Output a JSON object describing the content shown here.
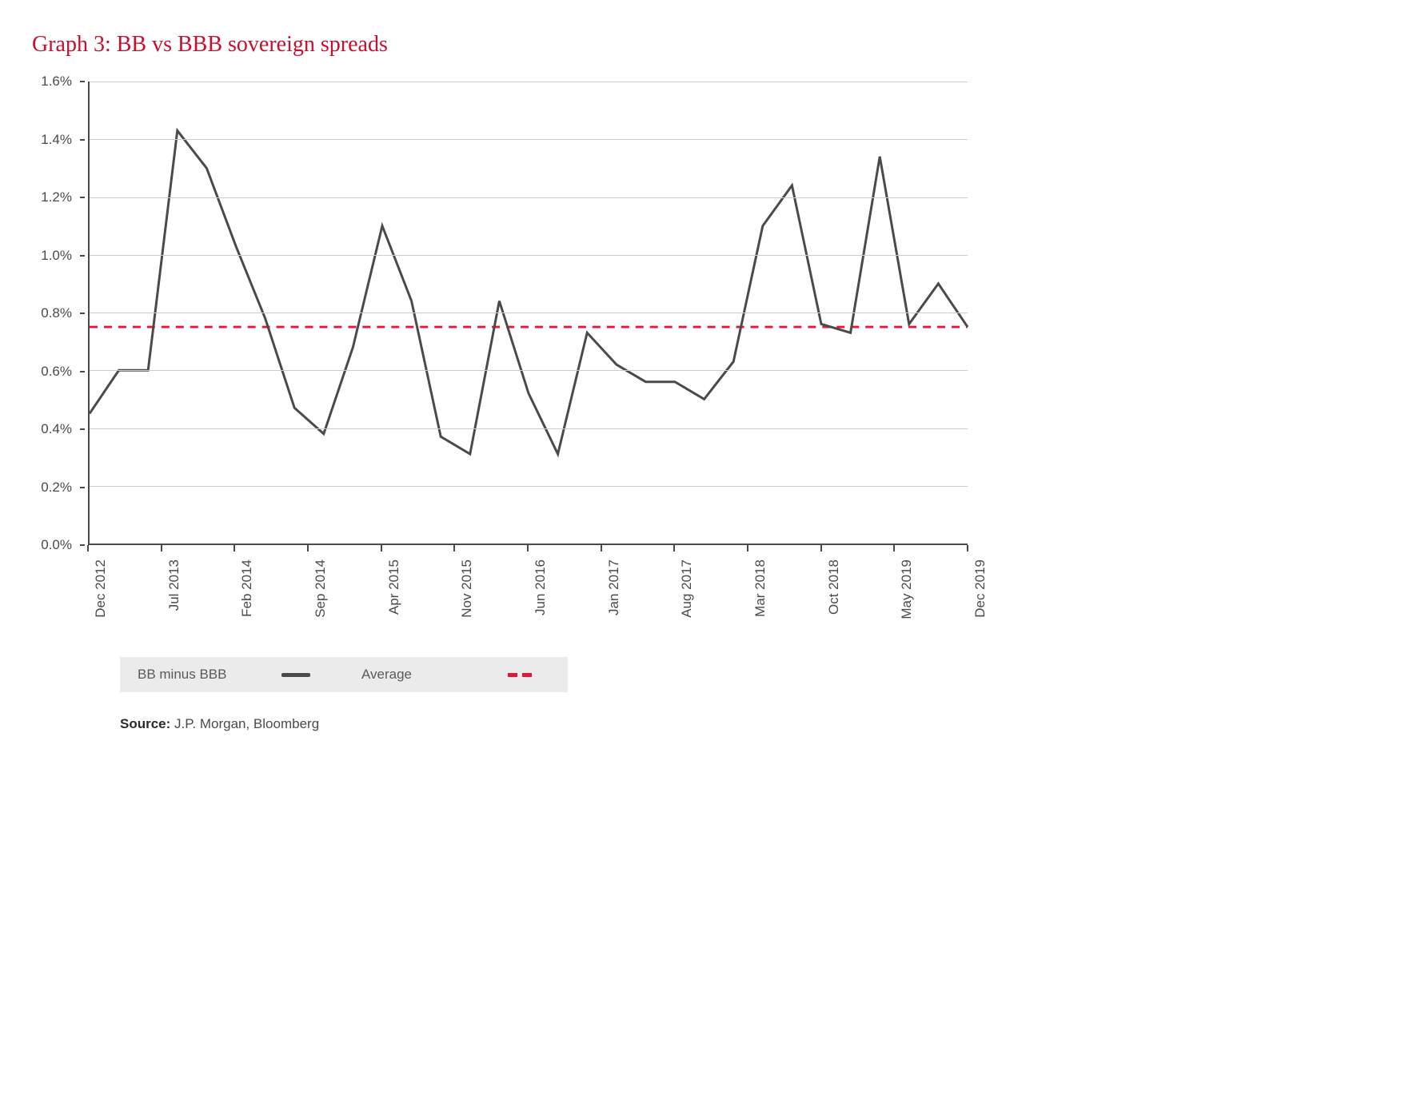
{
  "title": "Graph 3: BB vs BBB sovereign spreads",
  "chart": {
    "type": "line",
    "background_color": "#ffffff",
    "grid_color": "#cccccc",
    "axis_color": "#4a4a4a",
    "title_color": "#c8102e",
    "title_fontsize": 28,
    "label_fontsize": 17,
    "label_color": "#4a4a4a",
    "y": {
      "min": 0.0,
      "max": 1.6,
      "step": 0.2,
      "format": "percent",
      "labels": [
        "0.0%",
        "0.2%",
        "0.4%",
        "0.6%",
        "0.8%",
        "1.0%",
        "1.2%",
        "1.4%",
        "1.6%"
      ]
    },
    "x_labels": [
      "Dec 2012",
      "Jul 2013",
      "Feb 2014",
      "Sep 2014",
      "Apr 2015",
      "Nov 2015",
      "Jun 2016",
      "Jan 2017",
      "Aug 2017",
      "Mar 2018",
      "Oct 2018",
      "May 2019",
      "Dec 2019"
    ],
    "series": {
      "name": "BB minus BBB",
      "color": "#4a4a4a",
      "line_width": 3,
      "values": [
        0.45,
        0.6,
        0.6,
        1.43,
        1.3,
        1.03,
        0.78,
        0.47,
        0.38,
        0.68,
        1.1,
        0.84,
        0.37,
        0.31,
        0.84,
        0.52,
        0.31,
        0.73,
        0.62,
        0.56,
        0.56,
        0.5,
        0.63,
        1.1,
        1.24,
        0.76,
        0.73,
        1.34,
        0.76,
        0.9,
        0.75
      ]
    },
    "average": {
      "name": "Average",
      "value": 0.75,
      "color": "#e31837",
      "dash": "6,6",
      "line_width": 3
    }
  },
  "legend": {
    "background": "#ebebeb",
    "items": [
      {
        "label": "BB minus BBB",
        "type": "solid",
        "color": "#4a4a4a"
      },
      {
        "label": "Average",
        "type": "dashed",
        "color": "#e31837"
      }
    ]
  },
  "source": {
    "label": "Source:",
    "text": "J.P. Morgan, Bloomberg"
  }
}
